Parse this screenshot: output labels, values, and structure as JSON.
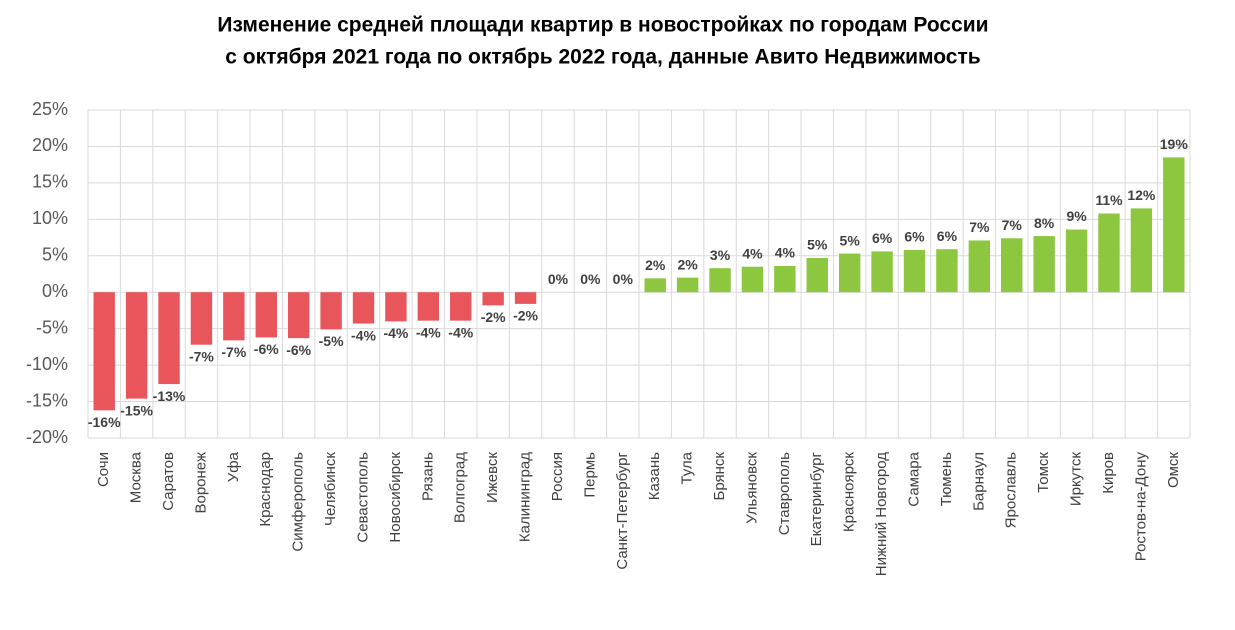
{
  "chart_data": {
    "type": "bar",
    "title": [
      "Изменение средней площади квартир в новостройках по городам России",
      "с октября 2021 года по октябрь 2022 года, данные Авито Недвижимость"
    ],
    "categories": [
      "Сочи",
      "Москва",
      "Саратов",
      "Воронеж",
      "Уфа",
      "Краснодар",
      "Симферополь",
      "Челябинск",
      "Севастополь",
      "Новосибирск",
      "Рязань",
      "Волгоград",
      "Ижевск",
      "Калининград",
      "Россия",
      "Пермь",
      "Санкт-Петербург",
      "Казань",
      "Тула",
      "Брянск",
      "Ульяновск",
      "Ставрополь",
      "Екатеринбург",
      "Красноярск",
      "Нижний Новгород",
      "Самара",
      "Тюмень",
      "Барнаул",
      "Ярославль",
      "Томск",
      "Иркутск",
      "Киров",
      "Ростов-на-Дону",
      "Омск"
    ],
    "values": [
      -16.2,
      -14.6,
      -12.6,
      -7.2,
      -6.6,
      -6.2,
      -6.3,
      -5.1,
      -4.3,
      -4.0,
      -3.9,
      -3.9,
      -1.8,
      -1.6,
      0,
      0,
      0,
      1.9,
      2.0,
      3.3,
      3.5,
      3.6,
      4.7,
      5.3,
      5.6,
      5.8,
      5.9,
      7.1,
      7.4,
      7.7,
      8.6,
      10.8,
      11.5,
      18.5
    ],
    "value_labels": [
      "-16%",
      "-15%",
      "-13%",
      "-7%",
      "-7%",
      "-6%",
      "-6%",
      "-5%",
      "-4%",
      "-4%",
      "-4%",
      "-4%",
      "-2%",
      "-2%",
      "0%",
      "0%",
      "0%",
      "2%",
      "2%",
      "3%",
      "4%",
      "4%",
      "5%",
      "5%",
      "6%",
      "6%",
      "6%",
      "7%",
      "7%",
      "8%",
      "9%",
      "11%",
      "12%",
      "19%"
    ],
    "negative_color": "#e8565b",
    "positive_color": "#8dc63f",
    "ylim": [
      -20,
      25
    ],
    "yticks": [
      {
        "value": -20,
        "label": "-20%"
      },
      {
        "value": -15,
        "label": "-15%"
      },
      {
        "value": -10,
        "label": "-10%"
      },
      {
        "value": -5,
        "label": "-5%"
      },
      {
        "value": 0,
        "label": "0%"
      },
      {
        "value": 5,
        "label": "5%"
      },
      {
        "value": 10,
        "label": "10%"
      },
      {
        "value": 15,
        "label": "15%"
      },
      {
        "value": 20,
        "label": "20%"
      },
      {
        "value": 25,
        "label": "25%"
      }
    ],
    "grid": true
  }
}
